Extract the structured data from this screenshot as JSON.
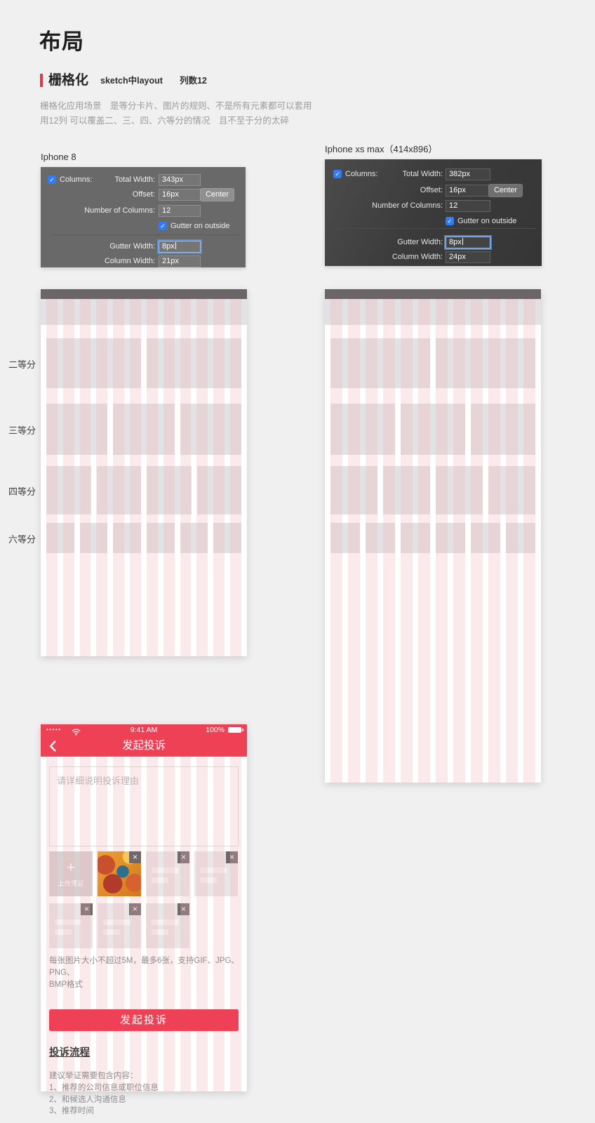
{
  "colors": {
    "accent_red": "#ee4156",
    "panel_light_bg": "#696969",
    "panel_dark_bg": "#3b3b3b",
    "grid_pink": "rgba(241,178,182,0.27)",
    "card_gray": "#e2e1e4",
    "checkbox_blue": "#2f7cf6"
  },
  "header": {
    "title": "布局",
    "section_title": "栅格化",
    "section_subtitle": "sketch中layout",
    "section_note": "列数12",
    "desc_line1": "栅格化应用场景　是等分卡片、图片的规则、不是所有元素都可以套用",
    "desc_line2": "用12列 可以覆盖二、三、四、六等分的情况　且不至于分的太碎"
  },
  "sketch_panels": [
    {
      "device_label": "Iphone 8",
      "columns_checkbox_label": "Columns:",
      "total_width_label": "Total Width:",
      "total_width_value": "343px",
      "offset_label": "Offset:",
      "offset_value": "16px",
      "center_button_label": "Center",
      "num_columns_label": "Number of Columns:",
      "num_columns_value": "12",
      "gutter_outside_label": "Gutter on outside",
      "gutter_width_label": "Gutter Width:",
      "gutter_width_value": "8px",
      "column_width_label": "Column Width:",
      "column_width_value": "21px"
    },
    {
      "device_label": "Iphone xs max（414x896）",
      "columns_checkbox_label": "Columns:",
      "total_width_label": "Total Width:",
      "total_width_value": "382px",
      "offset_label": "Offset:",
      "offset_value": "16px",
      "center_button_label": "Center",
      "num_columns_label": "Number of Columns:",
      "num_columns_value": "12",
      "gutter_outside_label": "Gutter on outside",
      "gutter_width_label": "Gutter Width:",
      "gutter_width_value": "8px",
      "column_width_label": "Column Width:",
      "column_width_value": "24px"
    }
  ],
  "grid_labels": [
    "二等分",
    "三等分",
    "四等分",
    "六等分"
  ],
  "phone": {
    "status_time": "9:41 AM",
    "battery_text": "100%",
    "nav_title": "发起投诉",
    "textarea_placeholder": "请详细说明投诉理由",
    "upload_button_label": "上传凭证",
    "upload_note_line1": "每张图片大小不超过5M，最多6张，支持GIF、JPG、PNG、",
    "upload_note_line2": "BMP格式",
    "submit_button_label": "发起投诉",
    "process_link_label": "投诉流程",
    "tips_title": "建议举证需要包含内容：",
    "tips": [
      "1、推荐的公司信息或职位信息",
      "2、和候选人沟通信息",
      "3、推荐时间"
    ]
  },
  "icons": {
    "check": "✓",
    "close": "×",
    "plus": "+",
    "signal_dots": "•••••"
  }
}
